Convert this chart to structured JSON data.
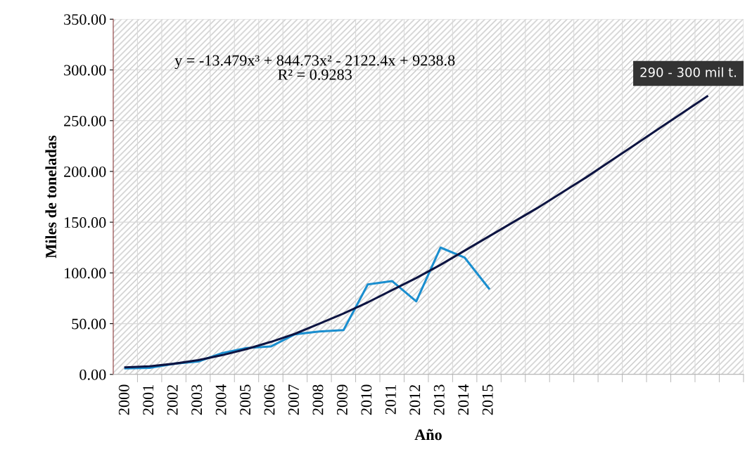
{
  "chart_data": {
    "type": "line",
    "xlabel": "Año",
    "ylabel": "Miles de toneladas",
    "categories": [
      "2000",
      "2001",
      "2002",
      "2003",
      "2004",
      "2005",
      "2006",
      "2007",
      "2008",
      "2009",
      "2010",
      "2011",
      "2012",
      "2013",
      "2014",
      "2015",
      null,
      null,
      null,
      null,
      null,
      null,
      null,
      null,
      null,
      null
    ],
    "series": [
      {
        "color": "#1a8ecf",
        "values": [
          6.0,
          6.5,
          10.5,
          12.7,
          21,
          26,
          27.5,
          39.6,
          42.3,
          43.6,
          88.6,
          92,
          72,
          125,
          115,
          84.6,
          null,
          null,
          null,
          null,
          null,
          null,
          null,
          null,
          null,
          null
        ]
      },
      {
        "color": "#0d1442",
        "values": [
          7,
          8,
          10.5,
          14,
          19,
          25,
          32,
          40,
          50,
          60,
          71,
          83,
          95,
          108,
          122,
          136,
          150,
          164,
          179,
          194,
          210,
          226,
          242,
          258,
          274,
          null
        ]
      }
    ],
    "ylim": [
      0,
      350
    ],
    "yticks": [
      {
        "value": 0,
        "label": "0.00"
      },
      {
        "value": 50,
        "label": "50.00"
      },
      {
        "value": 100,
        "label": "100.00"
      },
      {
        "value": 150,
        "label": "150.00"
      },
      {
        "value": 200,
        "label": "200.00"
      },
      {
        "value": 250,
        "label": "250.00"
      },
      {
        "value": 300,
        "label": "300.00"
      },
      {
        "value": 350,
        "label": "350.00"
      }
    ],
    "grid": true,
    "marker": "none",
    "line_style": "solid",
    "annotations": [
      "y = -13.479x³ + 844.73x² - 2122.4x + 9238.8\nR² = 0.9283",
      "290 - 300 mil t."
    ]
  }
}
